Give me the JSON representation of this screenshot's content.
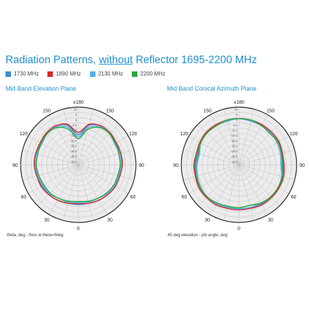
{
  "header": {
    "title_pre": "Radiation Patterns, ",
    "title_underlined": "without",
    "title_post": " Reflector 1695-2200 MHz"
  },
  "legend": [
    {
      "label": "1730 MHz",
      "color": "#3b8fd4"
    },
    {
      "label": "1890 MHz",
      "color": "#d62a2a"
    },
    {
      "label": "2130 MHz",
      "color": "#5aaee6"
    },
    {
      "label": "2200 MHz",
      "color": "#2aa63a"
    }
  ],
  "plots": [
    {
      "title": "Mid Band Elevation Plane",
      "caption": "theta, deg - floor at theta=0deg"
    },
    {
      "title": "Mid Band Conical Azimuth Plane",
      "caption": "45 deg elevation - phi angle, deg"
    }
  ],
  "chart_data": [
    {
      "type": "polar",
      "title": "Mid Band Elevation Plane",
      "angle_labels": [
        "±180",
        "150",
        "120",
        "90",
        "60",
        "30",
        "0",
        "30",
        "60",
        "90",
        "120",
        "150"
      ],
      "radial_labels": [
        "10",
        "5",
        "0",
        "-5.0",
        "-10.0",
        "-15.0",
        "-20.0",
        "-25.0",
        "-30.0",
        "-35.0",
        "-40.0"
      ],
      "rlim": [
        -45,
        10
      ],
      "grid": true,
      "series": [
        {
          "name": "1730 MHz",
          "color": "#3b8fd4",
          "angles": [
            0,
            15,
            30,
            45,
            60,
            75,
            90,
            105,
            120,
            135,
            150,
            165,
            180,
            195,
            210,
            225,
            240,
            255,
            270,
            285,
            300,
            315,
            330,
            345
          ],
          "values": [
            -7,
            -7,
            -6,
            -5,
            -5,
            -4,
            -3,
            -3,
            -4,
            -3,
            -2,
            -6,
            -16,
            -6,
            -2,
            -3,
            -4,
            -3,
            -3,
            -4,
            -5,
            -5,
            -6,
            -7
          ]
        },
        {
          "name": "1890 MHz",
          "color": "#d62a2a",
          "angles": [
            0,
            15,
            30,
            45,
            60,
            75,
            90,
            105,
            120,
            135,
            150,
            165,
            180,
            195,
            210,
            225,
            240,
            255,
            270,
            285,
            300,
            315,
            330,
            345
          ],
          "values": [
            -8,
            -7,
            -6,
            -5,
            -4,
            -4,
            -3,
            -3,
            -3,
            -2,
            -2,
            -5,
            -14,
            -5,
            -2,
            -2,
            -3,
            -3,
            -3,
            -4,
            -4,
            -5,
            -6,
            -7
          ]
        },
        {
          "name": "2130 MHz",
          "color": "#5aaee6",
          "angles": [
            0,
            15,
            30,
            45,
            60,
            75,
            90,
            105,
            120,
            135,
            150,
            165,
            180,
            195,
            210,
            225,
            240,
            255,
            270,
            285,
            300,
            315,
            330,
            345
          ],
          "values": [
            -9,
            -8,
            -8,
            -6,
            -5,
            -5,
            -4,
            -4,
            -5,
            -3,
            -3,
            -8,
            -18,
            -8,
            -3,
            -3,
            -5,
            -4,
            -4,
            -5,
            -6,
            -6,
            -8,
            -8
          ]
        },
        {
          "name": "2200 MHz",
          "color": "#2aa63a",
          "angles": [
            0,
            15,
            30,
            45,
            60,
            75,
            90,
            105,
            120,
            135,
            150,
            165,
            180,
            195,
            210,
            225,
            240,
            255,
            270,
            285,
            300,
            315,
            330,
            345
          ],
          "values": [
            -10,
            -9,
            -8,
            -7,
            -6,
            -6,
            -5,
            -5,
            -4,
            -3,
            -4,
            -10,
            -20,
            -10,
            -4,
            -3,
            -4,
            -5,
            -5,
            -6,
            -7,
            -7,
            -8,
            -9
          ]
        }
      ]
    },
    {
      "type": "polar",
      "title": "Mid Band Conical Azimuth Plane",
      "angle_labels": [
        "±180",
        "150",
        "120",
        "90",
        "60",
        "30",
        "0",
        "30",
        "60",
        "90",
        "120",
        "150"
      ],
      "radial_labels": [
        "10",
        "5",
        "0",
        "-5.0",
        "-10.0",
        "-15.0",
        "-20.0",
        "-25.0",
        "-30.0",
        "-35.0",
        "-40.0"
      ],
      "rlim": [
        -45,
        10
      ],
      "grid": true,
      "series": [
        {
          "name": "1730 MHz",
          "color": "#3b8fd4",
          "angles": [
            0,
            15,
            30,
            45,
            60,
            75,
            90,
            105,
            120,
            135,
            150,
            165,
            180,
            195,
            210,
            225,
            240,
            255,
            270,
            285,
            300,
            315,
            330,
            345
          ],
          "values": [
            -3,
            -3,
            -2,
            -2,
            -1,
            -2,
            -4,
            -3,
            -2,
            -2,
            -1,
            -1,
            -1,
            -1,
            -2,
            -2,
            -3,
            -5,
            -4,
            -3,
            -2,
            -2,
            -2,
            -3
          ]
        },
        {
          "name": "1890 MHz",
          "color": "#d62a2a",
          "angles": [
            0,
            15,
            30,
            45,
            60,
            75,
            90,
            105,
            120,
            135,
            150,
            165,
            180,
            195,
            210,
            225,
            240,
            255,
            270,
            285,
            300,
            315,
            330,
            345
          ],
          "values": [
            -2,
            -2,
            -1,
            -1,
            -1,
            -1,
            -2,
            -2,
            -1,
            -1,
            -1,
            -1,
            -1,
            -1,
            -1,
            -1,
            -2,
            -3,
            -2,
            -2,
            -1,
            -1,
            -1,
            -2
          ]
        },
        {
          "name": "2130 MHz",
          "color": "#5aaee6",
          "angles": [
            0,
            15,
            30,
            45,
            60,
            75,
            90,
            105,
            120,
            135,
            150,
            165,
            180,
            195,
            210,
            225,
            240,
            255,
            270,
            285,
            300,
            315,
            330,
            345
          ],
          "values": [
            -3,
            -3,
            -3,
            -2,
            -2,
            -3,
            -5,
            -4,
            -3,
            -2,
            -2,
            -2,
            -1,
            -2,
            -2,
            -2,
            -3,
            -6,
            -5,
            -4,
            -3,
            -2,
            -2,
            -3
          ]
        },
        {
          "name": "2200 MHz",
          "color": "#2aa63a",
          "angles": [
            0,
            15,
            30,
            45,
            60,
            75,
            90,
            105,
            120,
            135,
            150,
            165,
            180,
            195,
            210,
            225,
            240,
            255,
            270,
            285,
            300,
            315,
            330,
            345
          ],
          "values": [
            -4,
            -5,
            -3,
            -2,
            -2,
            -2,
            -3,
            -3,
            -2,
            -3,
            -2,
            -1,
            -1,
            -1,
            -2,
            -2,
            -3,
            -4,
            -3,
            -3,
            -2,
            -2,
            -3,
            -4
          ]
        }
      ]
    }
  ]
}
